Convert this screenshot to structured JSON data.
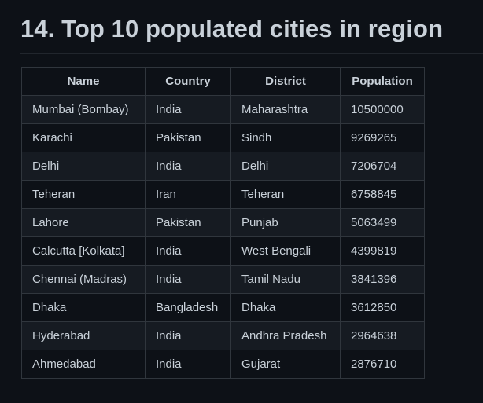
{
  "heading": "14. Top 10 populated cities in region",
  "table": {
    "headers": [
      "Name",
      "Country",
      "District",
      "Population"
    ],
    "rows": [
      [
        "Mumbai (Bombay)",
        "India",
        "Maharashtra",
        "10500000"
      ],
      [
        "Karachi",
        "Pakistan",
        "Sindh",
        "9269265"
      ],
      [
        "Delhi",
        "India",
        "Delhi",
        "7206704"
      ],
      [
        "Teheran",
        "Iran",
        "Teheran",
        "6758845"
      ],
      [
        "Lahore",
        "Pakistan",
        "Punjab",
        "5063499"
      ],
      [
        "Calcutta [Kolkata]",
        "India",
        "West Bengali",
        "4399819"
      ],
      [
        "Chennai (Madras)",
        "India",
        "Tamil Nadu",
        "3841396"
      ],
      [
        "Dhaka",
        "Bangladesh",
        "Dhaka",
        "3612850"
      ],
      [
        "Hyderabad",
        "India",
        "Andhra Pradesh",
        "2964638"
      ],
      [
        "Ahmedabad",
        "India",
        "Gujarat",
        "2876710"
      ]
    ]
  }
}
